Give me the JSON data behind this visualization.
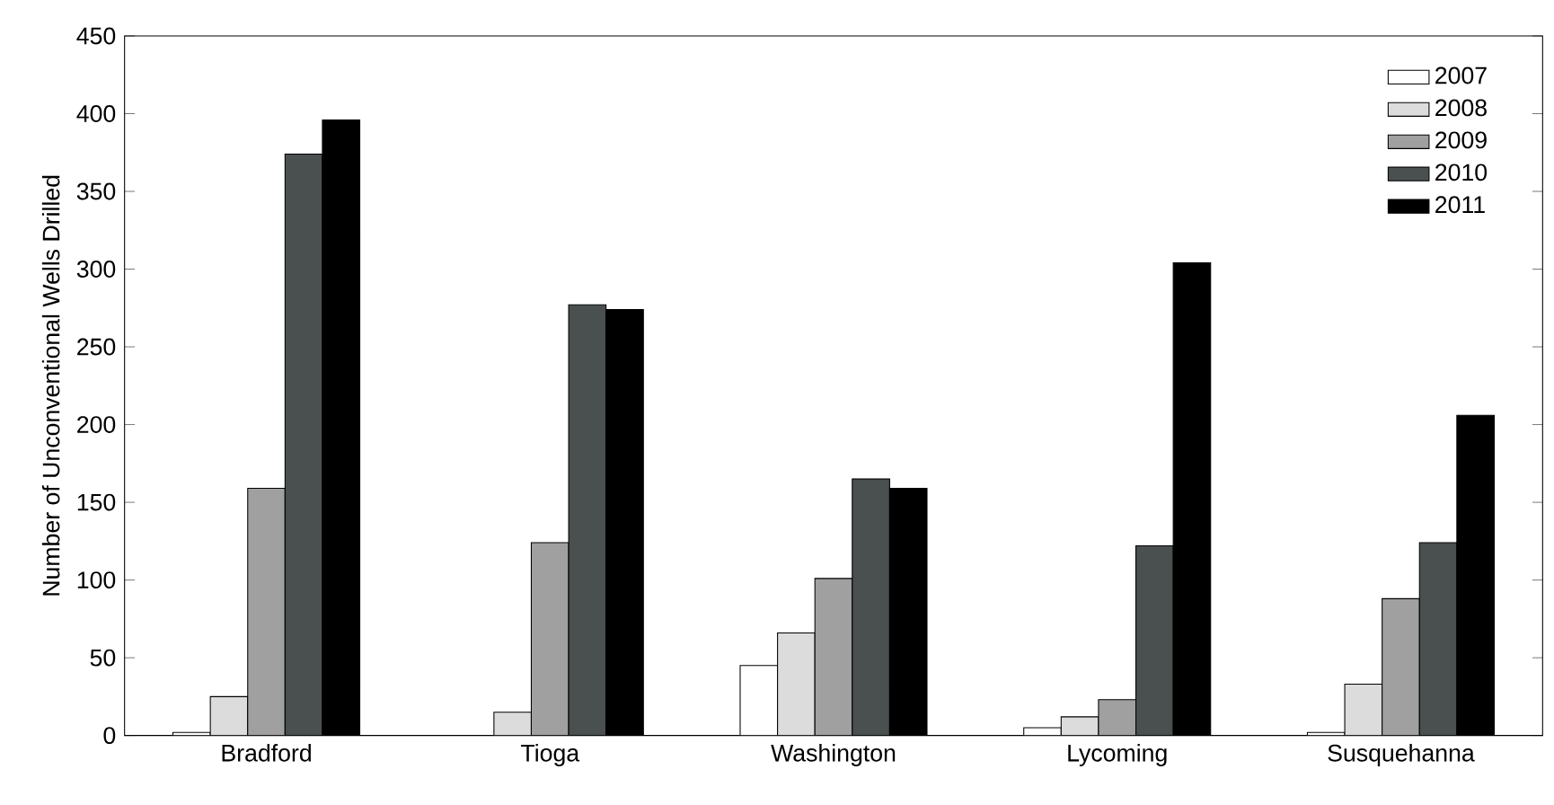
{
  "chart_data": {
    "type": "bar",
    "ylabel": "Number of Unconventional Wells Drilled",
    "categories": [
      "Bradford",
      "Tioga",
      "Washington",
      "Lycoming",
      "Susquehanna"
    ],
    "series": [
      {
        "name": "2007",
        "color": "#ffffff",
        "values": [
          2,
          null,
          45,
          5,
          2
        ]
      },
      {
        "name": "2008",
        "color": "#dcdcdc",
        "values": [
          25,
          15,
          66,
          12,
          33
        ]
      },
      {
        "name": "2009",
        "color": "#a0a0a0",
        "values": [
          159,
          124,
          101,
          23,
          88
        ]
      },
      {
        "name": "2010",
        "color": "#4a4f4f",
        "values": [
          374,
          277,
          165,
          122,
          124
        ]
      },
      {
        "name": "2011",
        "color": "#000000",
        "values": [
          396,
          274,
          159,
          304,
          206
        ]
      }
    ],
    "ylim": [
      0,
      450
    ],
    "yticks": [
      0,
      50,
      100,
      150,
      200,
      250,
      300,
      350,
      400,
      450
    ],
    "legend": "top right",
    "grid": false
  }
}
